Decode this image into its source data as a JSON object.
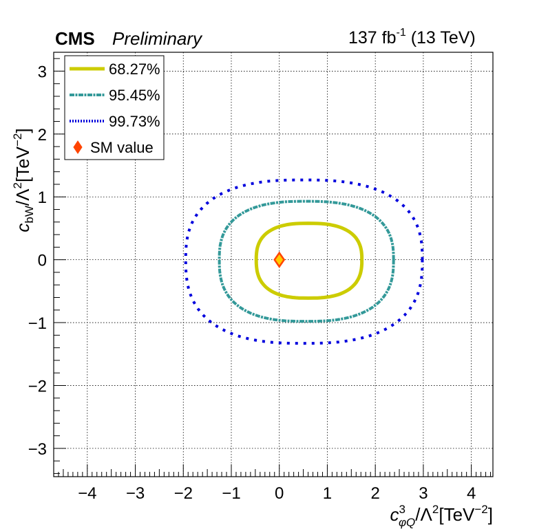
{
  "header": {
    "experiment": "CMS",
    "status": "Preliminary",
    "lumi_value": "137 fb",
    "lumi_exp": "-1",
    "energy": " (13 TeV)"
  },
  "chart_data": {
    "type": "contour",
    "title": "",
    "xlabel": "c_{φQ}^{3}/Λ^{2}[TeV^{-2}]",
    "ylabel": "c_{bW}/Λ^{2}[TeV^{-2}]",
    "x_axis": {
      "base": "c",
      "superscript": "3",
      "subscript": "φQ",
      "denominator": "/Λ",
      "power": "2",
      "unit": "[TeV",
      "unit_power": "−2",
      "close": "]"
    },
    "y_axis": {
      "base": "c",
      "subscript": "bW",
      "denominator": "/Λ",
      "power": "2",
      "unit": "[TeV",
      "unit_power": "−2",
      "close": "]"
    },
    "xlim": [
      -4.7,
      4.45
    ],
    "ylim": [
      -3.45,
      3.3
    ],
    "xticks": [
      -4,
      -3,
      -2,
      -1,
      0,
      1,
      2,
      3,
      4
    ],
    "xtick_labels": [
      "−4",
      "−3",
      "−2",
      "−1",
      "0",
      "1",
      "2",
      "3",
      "4"
    ],
    "yticks": [
      -3,
      -2,
      -1,
      0,
      1,
      2,
      3
    ],
    "ytick_labels": [
      "−3",
      "−2",
      "−1",
      "0",
      "1",
      "2",
      "3"
    ],
    "grid": true,
    "legend_position": "top-left",
    "series": [
      {
        "name": "68.27%",
        "style": "solid",
        "color": "#cccc00",
        "center": [
          0.6,
          0.0
        ],
        "x_range": [
          -0.48,
          1.72
        ],
        "y_range": [
          -0.61,
          0.58
        ]
      },
      {
        "name": "95.45%",
        "style": "dash-dot",
        "color": "#339999",
        "center": [
          0.55,
          0.0
        ],
        "x_range": [
          -1.25,
          2.38
        ],
        "y_range": [
          -0.98,
          0.93
        ]
      },
      {
        "name": "99.73%",
        "style": "dotted",
        "color": "#0000dd",
        "center": [
          0.5,
          0.0
        ],
        "x_range": [
          -1.95,
          2.98
        ],
        "y_range": [
          -1.33,
          1.27
        ]
      }
    ],
    "points": [
      {
        "name": "SM value",
        "x": 0,
        "y": 0,
        "marker": "diamond",
        "color": "#ff4400"
      }
    ]
  }
}
